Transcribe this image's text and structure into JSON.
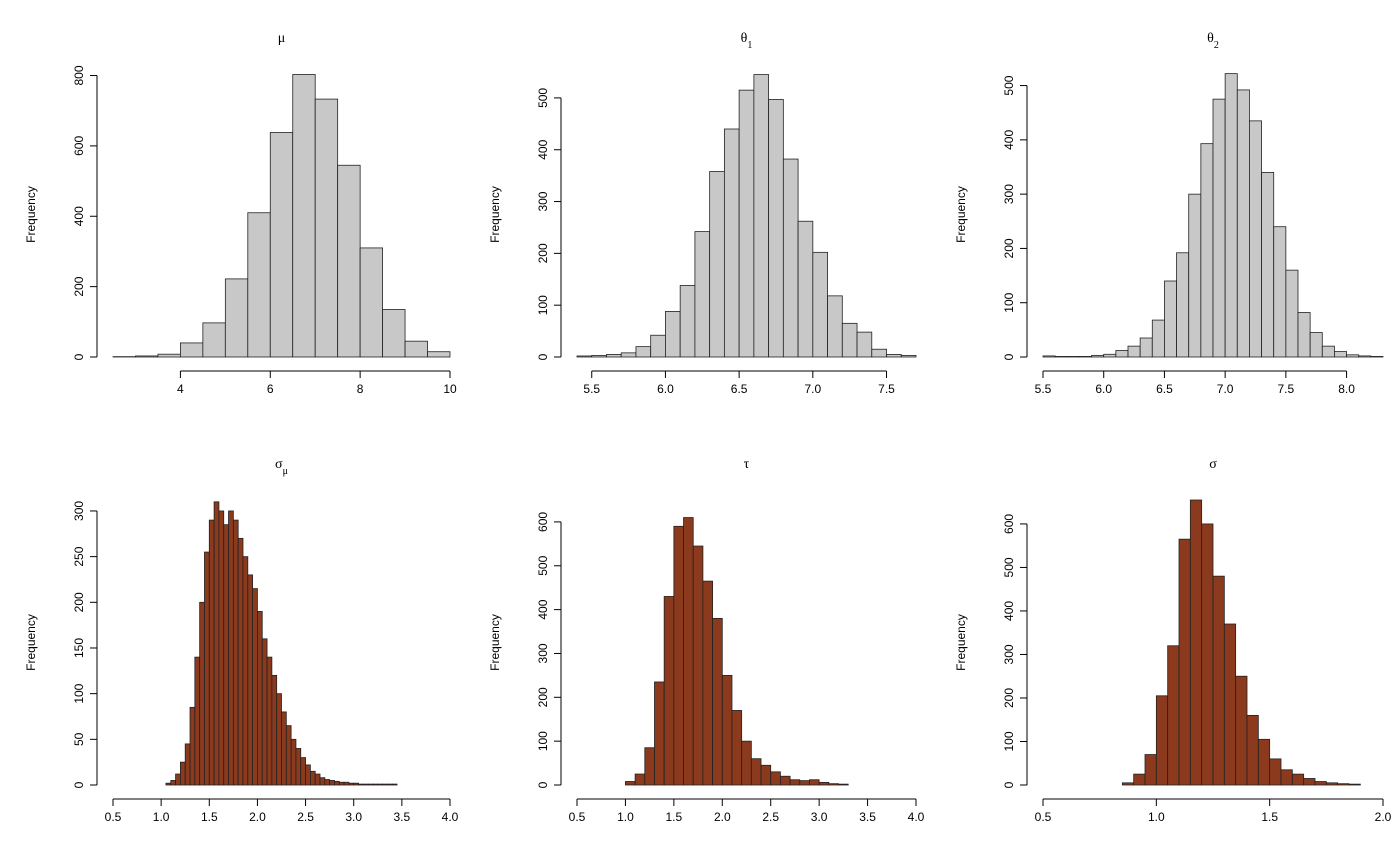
{
  "chart_data": [
    {
      "type": "histogram",
      "title": "μ",
      "ylabel": "Frequency",
      "color": "#c8c8c8",
      "bins": [
        2.5,
        3,
        3.5,
        4,
        4.5,
        5,
        5.5,
        6,
        6.5,
        7,
        7.5,
        8,
        8.5,
        9,
        9.5,
        10
      ],
      "values": [
        1,
        3,
        8,
        40,
        97,
        222,
        410,
        638,
        803,
        733,
        545,
        310,
        135,
        45,
        15
      ],
      "xlim": [
        2.5,
        10
      ],
      "ylim": [
        0,
        810
      ],
      "xticks": [
        4,
        6,
        8,
        10
      ],
      "yticks": [
        0,
        200,
        400,
        600,
        800
      ]
    },
    {
      "type": "histogram",
      "title": "θ",
      "subscript": "1",
      "ylabel": "Frequency",
      "color": "#c8c8c8",
      "bins": [
        5.4,
        5.5,
        5.6,
        5.7,
        5.8,
        5.9,
        6,
        6.1,
        6.2,
        6.3,
        6.4,
        6.5,
        6.6,
        6.7,
        6.8,
        6.9,
        7,
        7.1,
        7.2,
        7.3,
        7.4,
        7.5,
        7.6,
        7.7
      ],
      "values": [
        2,
        3,
        5,
        8,
        20,
        42,
        88,
        138,
        242,
        358,
        440,
        515,
        545,
        497,
        382,
        262,
        202,
        118,
        65,
        48,
        15,
        5,
        3
      ],
      "xlim": [
        5.4,
        7.7
      ],
      "ylim": [
        0,
        550
      ],
      "xticks": [
        5.5,
        {
          "value": 6,
          "label": "6.0"
        },
        6.5,
        {
          "value": 7,
          "label": "7.0"
        },
        7.5
      ],
      "yticks": [
        0,
        100,
        200,
        300,
        400,
        500
      ]
    },
    {
      "type": "histogram",
      "title": "θ",
      "subscript": "2",
      "ylabel": "Frequency",
      "color": "#c8c8c8",
      "bins": [
        5.5,
        5.6,
        5.7,
        5.8,
        5.9,
        6,
        6.1,
        6.2,
        6.3,
        6.4,
        6.5,
        6.6,
        6.7,
        6.8,
        6.9,
        7,
        7.1,
        7.2,
        7.3,
        7.4,
        7.5,
        7.6,
        7.7,
        7.8,
        7.9,
        8,
        8.1,
        8.2,
        8.3
      ],
      "values": [
        2,
        1,
        1,
        1,
        3,
        5,
        12,
        20,
        35,
        68,
        140,
        192,
        300,
        393,
        475,
        522,
        492,
        435,
        340,
        240,
        160,
        82,
        45,
        20,
        10,
        4,
        2,
        1
      ],
      "xlim": [
        5.5,
        8.3
      ],
      "ylim": [
        0,
        525
      ],
      "xticks": [
        5.5,
        {
          "value": 6,
          "label": "6.0"
        },
        6.5,
        {
          "value": 7,
          "label": "7.0"
        },
        7.5,
        {
          "value": 8,
          "label": "8.0"
        }
      ],
      "yticks": [
        0,
        100,
        200,
        300,
        400,
        500
      ]
    },
    {
      "type": "histogram",
      "title": "σ",
      "subscript": "μ",
      "ylabel": "Frequency",
      "color": "#8b3a1e",
      "bins": [
        1.05,
        1.1,
        1.15,
        1.2,
        1.25,
        1.3,
        1.35,
        1.4,
        1.45,
        1.5,
        1.55,
        1.6,
        1.65,
        1.7,
        1.75,
        1.8,
        1.85,
        1.9,
        1.95,
        2,
        2.05,
        2.1,
        2.15,
        2.2,
        2.25,
        2.3,
        2.35,
        2.4,
        2.45,
        2.5,
        2.55,
        2.6,
        2.65,
        2.7,
        2.75,
        2.8,
        2.85,
        2.9,
        2.95,
        3,
        3.05,
        3.1,
        3.15,
        3.2,
        3.25,
        3.3,
        3.35,
        3.4,
        3.45
      ],
      "values": [
        2,
        5,
        12,
        25,
        45,
        85,
        140,
        200,
        255,
        290,
        310,
        300,
        285,
        300,
        290,
        270,
        250,
        230,
        215,
        190,
        160,
        140,
        120,
        100,
        80,
        65,
        50,
        40,
        30,
        22,
        15,
        12,
        8,
        6,
        5,
        4,
        3,
        3,
        2,
        2,
        1,
        1,
        1,
        1,
        1,
        1,
        1,
        1
      ],
      "xlim": [
        0.5,
        4
      ],
      "ylim": [
        0,
        312
      ],
      "xticks": [
        0.5,
        {
          "value": 1,
          "label": "1.0"
        },
        1.5,
        {
          "value": 2,
          "label": "2.0"
        },
        2.5,
        {
          "value": 3,
          "label": "3.0"
        },
        3.5,
        {
          "value": 4,
          "label": "4.0"
        }
      ],
      "yticks": [
        0,
        50,
        100,
        150,
        200,
        250,
        300
      ]
    },
    {
      "type": "histogram",
      "title": "τ",
      "ylabel": "Frequency",
      "color": "#8b3a1e",
      "bins": [
        1,
        1.1,
        1.2,
        1.3,
        1.4,
        1.5,
        1.6,
        1.7,
        1.8,
        1.9,
        2,
        2.1,
        2.2,
        2.3,
        2.4,
        2.5,
        2.6,
        2.7,
        2.8,
        2.9,
        3,
        3.1,
        3.2,
        3.3
      ],
      "values": [
        8,
        25,
        85,
        235,
        430,
        590,
        610,
        545,
        465,
        380,
        250,
        170,
        100,
        60,
        45,
        30,
        20,
        12,
        10,
        12,
        6,
        3,
        2
      ],
      "xlim": [
        0.5,
        4
      ],
      "ylim": [
        0,
        650
      ],
      "xticks": [
        0.5,
        {
          "value": 1,
          "label": "1.0"
        },
        1.5,
        {
          "value": 2,
          "label": "2.0"
        },
        2.5,
        {
          "value": 3,
          "label": "3.0"
        },
        3.5,
        {
          "value": 4,
          "label": "4.0"
        }
      ],
      "yticks": [
        0,
        100,
        200,
        300,
        400,
        500,
        600
      ]
    },
    {
      "type": "histogram",
      "title": "σ",
      "ylabel": "Frequency",
      "color": "#8b3a1e",
      "bins": [
        0.85,
        0.9,
        0.95,
        1,
        1.05,
        1.1,
        1.15,
        1.2,
        1.25,
        1.3,
        1.35,
        1.4,
        1.45,
        1.5,
        1.55,
        1.6,
        1.65,
        1.7,
        1.75,
        1.8,
        1.85,
        1.9
      ],
      "values": [
        5,
        25,
        70,
        205,
        320,
        565,
        655,
        600,
        480,
        370,
        250,
        160,
        105,
        60,
        35,
        25,
        15,
        8,
        5,
        3,
        2
      ],
      "xlim": [
        0.5,
        2
      ],
      "ylim": [
        0,
        655
      ],
      "xticks": [
        0.5,
        {
          "value": 1,
          "label": "1.0"
        },
        1.5,
        {
          "value": 2,
          "label": "2.0"
        }
      ],
      "yticks": [
        0,
        100,
        200,
        300,
        400,
        500,
        600
      ]
    }
  ]
}
